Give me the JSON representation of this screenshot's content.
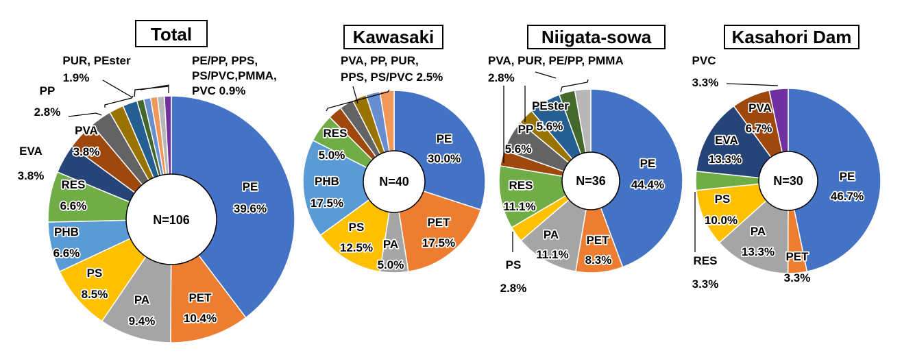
{
  "chart_data": [
    {
      "type": "pie",
      "title": "Total",
      "n_label": "N=106",
      "start": "12 o'clock, clockwise",
      "slices": [
        {
          "label": "PE",
          "value": 39.6,
          "text": "39.6%",
          "color": "#4472C4"
        },
        {
          "label": "PET",
          "value": 10.4,
          "text": "10.4%",
          "color": "#ED7D31"
        },
        {
          "label": "PA",
          "value": 9.4,
          "text": "9.4%",
          "color": "#A5A5A5"
        },
        {
          "label": "PS",
          "value": 8.5,
          "text": "8.5%",
          "color": "#FFC000"
        },
        {
          "label": "PHB",
          "value": 6.6,
          "text": "6.6%",
          "color": "#5B9BD5"
        },
        {
          "label": "RES",
          "value": 6.6,
          "text": "6.6%",
          "color": "#70AD47"
        },
        {
          "label": "EVA",
          "value": 3.8,
          "text": "3.8%",
          "color": "#264478"
        },
        {
          "label": "PVA",
          "value": 3.8,
          "text": "3.8%",
          "color": "#9E480E"
        },
        {
          "label": "PP",
          "value": 2.8,
          "text": "2.8%",
          "color": "#636363"
        },
        {
          "label": "PEster",
          "value": 1.9,
          "color": "#997300"
        },
        {
          "label": "PUR",
          "value": 1.9,
          "color": "#255E91"
        },
        {
          "label": "PE/PP",
          "value": 0.9,
          "color": "#43682B"
        },
        {
          "label": "PPS",
          "value": 0.9,
          "color": "#698ED0"
        },
        {
          "label": "PS/PVC",
          "value": 0.9,
          "color": "#F1975A"
        },
        {
          "label": "PMMA",
          "value": 0.9,
          "color": "#B7B7B7"
        },
        {
          "label": "PVC",
          "value": 0.9,
          "color": "#7030A0"
        }
      ],
      "group_labels": [
        {
          "lines": [
            "PUR, PEster",
            "1.9%"
          ]
        },
        {
          "lines": [
            "PE/PP, PPS,",
            "PS/PVC,PMMA,",
            "PVC 0.9%"
          ]
        }
      ]
    },
    {
      "type": "pie",
      "title": "Kawasaki",
      "n_label": "N=40",
      "start": "12 o'clock, clockwise",
      "slices": [
        {
          "label": "PE",
          "value": 30.0,
          "text": "30.0%",
          "color": "#4472C4"
        },
        {
          "label": "PET",
          "value": 17.5,
          "text": "17.5%",
          "color": "#ED7D31"
        },
        {
          "label": "PA",
          "value": 5.0,
          "text": "5.0%",
          "color": "#A5A5A5"
        },
        {
          "label": "PS",
          "value": 12.5,
          "text": "12.5%",
          "color": "#FFC000"
        },
        {
          "label": "PHB",
          "value": 17.5,
          "text": "17.5%",
          "color": "#5B9BD5"
        },
        {
          "label": "RES",
          "value": 5.0,
          "text": "5.0%",
          "color": "#70AD47"
        },
        {
          "label": "PVA",
          "value": 2.5,
          "color": "#9E480E"
        },
        {
          "label": "PP",
          "value": 2.5,
          "color": "#636363"
        },
        {
          "label": "PUR",
          "value": 2.5,
          "color": "#997300"
        },
        {
          "label": "PPS",
          "value": 2.5,
          "color": "#698ED0"
        },
        {
          "label": "PS/PVC",
          "value": 2.5,
          "color": "#F1975A"
        }
      ],
      "group_labels": [
        {
          "lines": [
            "PVA, PP, PUR,",
            "PPS, PS/PVC 2.5%"
          ]
        }
      ]
    },
    {
      "type": "pie",
      "title": "Niigata-sowa",
      "n_label": "N=36",
      "start": "12 o'clock, clockwise",
      "slices": [
        {
          "label": "PE",
          "value": 44.4,
          "text": "44.4%",
          "color": "#4472C4"
        },
        {
          "label": "PET",
          "value": 8.3,
          "text": "8.3%",
          "color": "#ED7D31"
        },
        {
          "label": "PA",
          "value": 11.1,
          "text": "11.1%",
          "color": "#A5A5A5"
        },
        {
          "label": "PS",
          "value": 2.8,
          "text": "2.8%",
          "color": "#FFC000"
        },
        {
          "label": "RES",
          "value": 11.1,
          "text": "11.1%",
          "color": "#70AD47"
        },
        {
          "label": "PVA",
          "value": 2.8,
          "color": "#9E480E"
        },
        {
          "label": "PP",
          "value": 5.6,
          "text": "5.6%",
          "color": "#636363"
        },
        {
          "label": "PUR",
          "value": 2.8,
          "color": "#997300"
        },
        {
          "label": "PEster",
          "value": 5.6,
          "text": "5.6%",
          "color": "#255E91"
        },
        {
          "label": "PE/PP",
          "value": 2.8,
          "color": "#43682B"
        },
        {
          "label": "PMMA",
          "value": 2.8,
          "color": "#B7B7B7"
        }
      ],
      "group_labels": [
        {
          "lines": [
            "PVA, PUR, PE/PP, PMMA",
            "2.8%"
          ]
        }
      ]
    },
    {
      "type": "pie",
      "title": "Kasahori Dam",
      "n_label": "N=30",
      "start": "12 o'clock, clockwise",
      "slices": [
        {
          "label": "PE",
          "value": 46.7,
          "text": "46.7%",
          "color": "#4472C4"
        },
        {
          "label": "PET",
          "value": 3.3,
          "text": "3.3%",
          "color": "#ED7D31"
        },
        {
          "label": "PA",
          "value": 13.3,
          "text": "13.3%",
          "color": "#A5A5A5"
        },
        {
          "label": "PS",
          "value": 10.0,
          "text": "10.0%",
          "color": "#FFC000"
        },
        {
          "label": "RES",
          "value": 3.3,
          "text": "3.3%",
          "color": "#70AD47"
        },
        {
          "label": "EVA",
          "value": 13.3,
          "text": "13.3%",
          "color": "#264478"
        },
        {
          "label": "PVA",
          "value": 6.7,
          "text": "6.7%",
          "color": "#9E480E"
        },
        {
          "label": "PVC",
          "value": 3.3,
          "text": "3.3%",
          "color": "#7030A0"
        }
      ],
      "group_labels": []
    }
  ]
}
